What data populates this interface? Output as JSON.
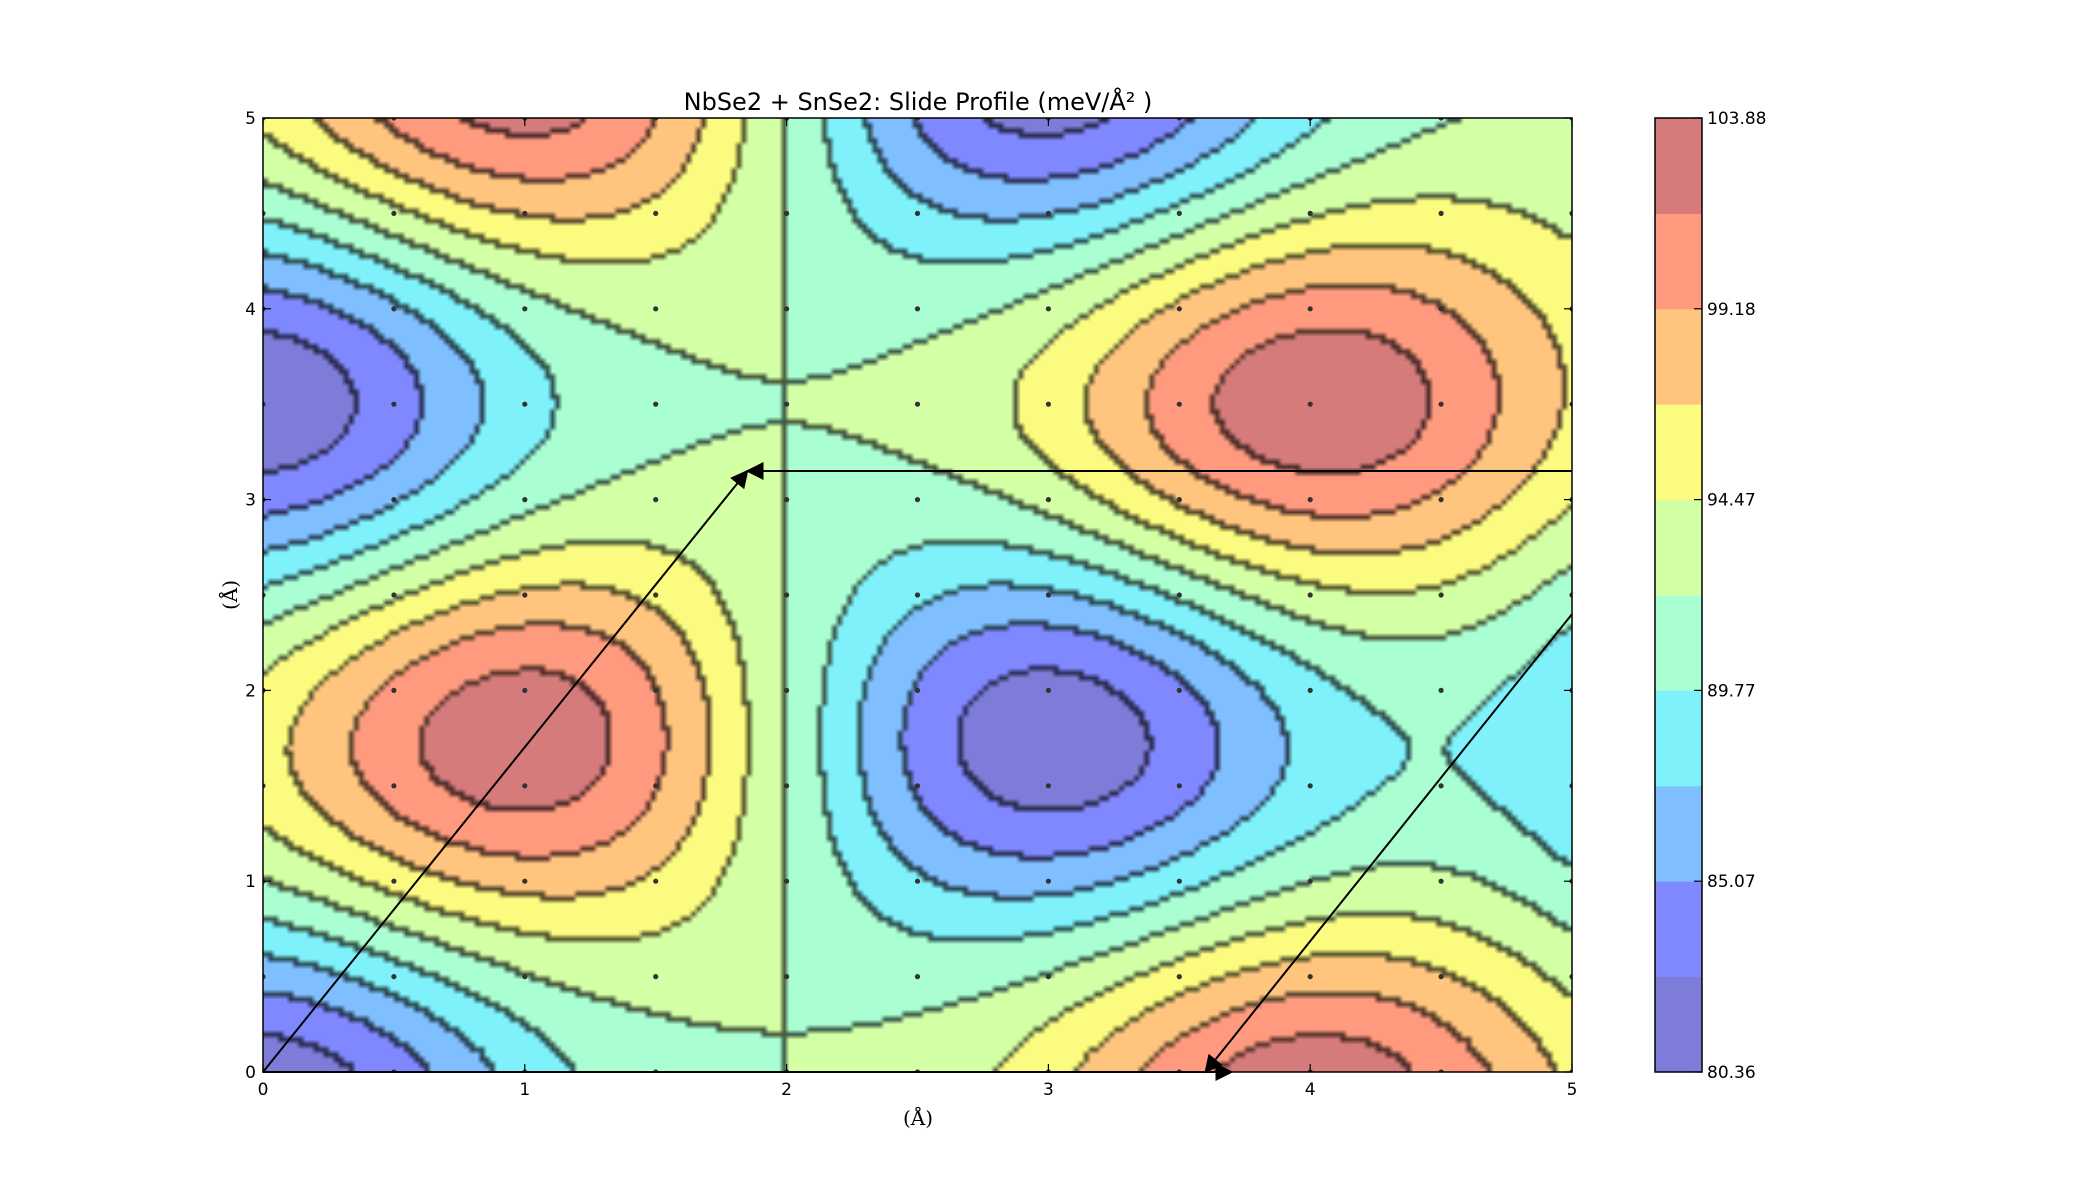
{
  "chart_data": {
    "type": "contourf",
    "title": "NbSe2 + SnSe2: Slide Profile (meV/Å² )",
    "xlabel": "(Å)",
    "ylabel": "(Å)",
    "xlim": [
      0,
      5
    ],
    "ylim": [
      0,
      5
    ],
    "x_ticks": [
      "0",
      "1",
      "2",
      "3",
      "4",
      "5"
    ],
    "y_ticks": [
      "0",
      "1",
      "2",
      "3",
      "4",
      "5"
    ],
    "grid": false,
    "colorbar": {
      "min": 80.36,
      "max": 103.88,
      "tick_labels": [
        "103.88",
        "99.18",
        "94.47",
        "89.77",
        "85.07",
        "80.36"
      ],
      "level_colors": [
        "#7d7dd9",
        "#7f88ff",
        "#7fbfff",
        "#7ff1fa",
        "#a9ffd2",
        "#d3ffa5",
        "#fbfb80",
        "#ffc57f",
        "#ff9a7f",
        "#d57b7b"
      ]
    },
    "extrema": {
      "maxima": [
        {
          "x": 1.0,
          "y": 1.75
        },
        {
          "x": 4.0,
          "y": 3.5
        },
        {
          "x": 1.0,
          "y": 5.25
        },
        {
          "x": 4.0,
          "y": -0.25
        }
      ],
      "minima": [
        {
          "x": 3.0,
          "y": 1.75
        },
        {
          "x": 0.0,
          "y": 3.5
        },
        {
          "x": 3.0,
          "y": 5.25
        },
        {
          "x": 0.0,
          "y": -0.25
        },
        {
          "x": 6.0,
          "y": 1.75
        }
      ]
    },
    "sample_points": {
      "x": [
        0,
        0.5,
        1,
        1.5,
        2,
        2.5,
        3,
        3.5,
        4,
        4.5,
        5
      ],
      "y": [
        0,
        0.5,
        1,
        1.5,
        2,
        2.5,
        3,
        3.5,
        4,
        4.5,
        5
      ]
    },
    "arrows": [
      {
        "from": [
          0,
          0
        ],
        "to": [
          1.85,
          3.15
        ]
      },
      {
        "from": [
          5,
          3.15
        ],
        "to": [
          1.85,
          3.15
        ]
      },
      {
        "from": [
          0,
          0
        ],
        "to": [
          3.7,
          0
        ]
      },
      {
        "from": [
          5,
          2.4
        ],
        "to": [
          3.6,
          0
        ]
      }
    ]
  }
}
